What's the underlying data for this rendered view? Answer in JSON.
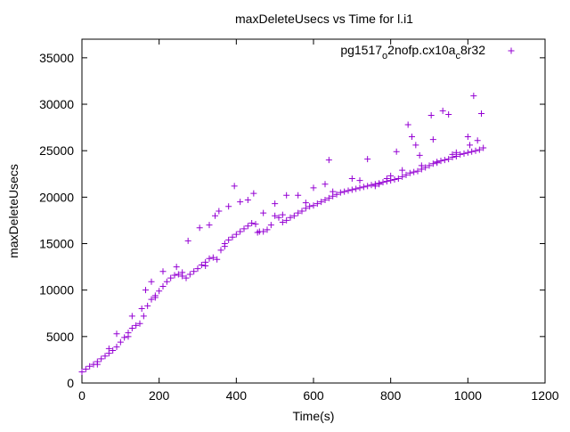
{
  "chart_data": {
    "type": "scatter",
    "title": "maxDeleteUsecs vs Time for l.i1",
    "xlabel": "Time(s)",
    "ylabel": "maxDeleteUsecs",
    "xlim": [
      0,
      1200
    ],
    "ylim": [
      0,
      37000
    ],
    "x_ticks": [
      0,
      200,
      400,
      600,
      800,
      1000,
      1200
    ],
    "y_ticks": [
      0,
      5000,
      10000,
      15000,
      20000,
      25000,
      30000,
      35000
    ],
    "grid": false,
    "legend_position": "top-right",
    "marker": "plus",
    "series": [
      {
        "legend_text": {
          "base": "pg1517",
          "sub1": "o",
          "mid": "2nofp.cx10a",
          "sub2": "c",
          "end": "8r32"
        },
        "color": "#9400d3",
        "points": [
          [
            0,
            1200
          ],
          [
            10,
            1500
          ],
          [
            20,
            1800
          ],
          [
            30,
            2000
          ],
          [
            40,
            2300
          ],
          [
            50,
            2600
          ],
          [
            60,
            2900
          ],
          [
            70,
            3200
          ],
          [
            80,
            3500
          ],
          [
            90,
            3900
          ],
          [
            100,
            4400
          ],
          [
            110,
            4900
          ],
          [
            120,
            5400
          ],
          [
            130,
            5900
          ],
          [
            140,
            6200
          ],
          [
            150,
            6400
          ],
          [
            160,
            7200
          ],
          [
            170,
            8300
          ],
          [
            180,
            9000
          ],
          [
            190,
            9400
          ],
          [
            200,
            9900
          ],
          [
            210,
            10400
          ],
          [
            220,
            10900
          ],
          [
            230,
            11300
          ],
          [
            240,
            11600
          ],
          [
            250,
            11700
          ],
          [
            260,
            11500
          ],
          [
            270,
            11300
          ],
          [
            280,
            11700
          ],
          [
            290,
            12000
          ],
          [
            300,
            12300
          ],
          [
            310,
            12700
          ],
          [
            320,
            13000
          ],
          [
            330,
            13400
          ],
          [
            340,
            13500
          ],
          [
            350,
            13300
          ],
          [
            360,
            14300
          ],
          [
            370,
            15000
          ],
          [
            380,
            15400
          ],
          [
            390,
            15700
          ],
          [
            400,
            16000
          ],
          [
            410,
            16300
          ],
          [
            420,
            16600
          ],
          [
            430,
            16900
          ],
          [
            440,
            17200
          ],
          [
            450,
            17100
          ],
          [
            460,
            16300
          ],
          [
            470,
            16300
          ],
          [
            480,
            16500
          ],
          [
            490,
            17000
          ],
          [
            500,
            18000
          ],
          [
            510,
            17800
          ],
          [
            520,
            17300
          ],
          [
            530,
            17500
          ],
          [
            540,
            17800
          ],
          [
            550,
            18000
          ],
          [
            560,
            18300
          ],
          [
            570,
            18500
          ],
          [
            580,
            18800
          ],
          [
            590,
            19000
          ],
          [
            600,
            19100
          ],
          [
            610,
            19300
          ],
          [
            620,
            19500
          ],
          [
            630,
            19700
          ],
          [
            640,
            19900
          ],
          [
            650,
            20100
          ],
          [
            660,
            20300
          ],
          [
            670,
            20500
          ],
          [
            680,
            20600
          ],
          [
            690,
            20700
          ],
          [
            700,
            20800
          ],
          [
            710,
            20900
          ],
          [
            720,
            21000
          ],
          [
            730,
            21100
          ],
          [
            740,
            21200
          ],
          [
            750,
            21300
          ],
          [
            760,
            21400
          ],
          [
            770,
            21500
          ],
          [
            780,
            21600
          ],
          [
            790,
            21700
          ],
          [
            800,
            21800
          ],
          [
            810,
            21900
          ],
          [
            820,
            22000
          ],
          [
            830,
            22200
          ],
          [
            840,
            22400
          ],
          [
            850,
            22600
          ],
          [
            860,
            22700
          ],
          [
            870,
            22800
          ],
          [
            880,
            23000
          ],
          [
            890,
            23200
          ],
          [
            900,
            23400
          ],
          [
            910,
            23600
          ],
          [
            920,
            23800
          ],
          [
            930,
            23900
          ],
          [
            940,
            24000
          ],
          [
            950,
            24100
          ],
          [
            960,
            24300
          ],
          [
            970,
            24400
          ],
          [
            980,
            24600
          ],
          [
            990,
            24700
          ],
          [
            1000,
            24800
          ],
          [
            1010,
            24900
          ],
          [
            1020,
            25000
          ],
          [
            1030,
            25100
          ],
          [
            40,
            2000
          ],
          [
            130,
            7200
          ],
          [
            155,
            8000
          ],
          [
            165,
            10000
          ],
          [
            180,
            10900
          ],
          [
            210,
            12000
          ],
          [
            245,
            12500
          ],
          [
            275,
            15300
          ],
          [
            305,
            16700
          ],
          [
            330,
            17000
          ],
          [
            345,
            18000
          ],
          [
            355,
            18500
          ],
          [
            380,
            19000
          ],
          [
            395,
            21200
          ],
          [
            410,
            19500
          ],
          [
            430,
            19700
          ],
          [
            445,
            20400
          ],
          [
            470,
            18300
          ],
          [
            500,
            19300
          ],
          [
            530,
            20200
          ],
          [
            560,
            20200
          ],
          [
            600,
            21000
          ],
          [
            630,
            21400
          ],
          [
            640,
            24000
          ],
          [
            700,
            22000
          ],
          [
            740,
            24100
          ],
          [
            770,
            21400
          ],
          [
            800,
            22300
          ],
          [
            815,
            24900
          ],
          [
            845,
            27800
          ],
          [
            855,
            26500
          ],
          [
            865,
            25600
          ],
          [
            875,
            24500
          ],
          [
            905,
            28800
          ],
          [
            910,
            26200
          ],
          [
            935,
            29300
          ],
          [
            950,
            28900
          ],
          [
            960,
            24600
          ],
          [
            1000,
            26500
          ],
          [
            1015,
            30900
          ],
          [
            1025,
            26100
          ],
          [
            1035,
            29000
          ],
          [
            1040,
            25300
          ],
          [
            70,
            3700
          ],
          [
            90,
            5300
          ],
          [
            120,
            5000
          ],
          [
            190,
            9200
          ],
          [
            260,
            11900
          ],
          [
            320,
            12600
          ],
          [
            370,
            14700
          ],
          [
            455,
            16200
          ],
          [
            520,
            18100
          ],
          [
            580,
            19400
          ],
          [
            650,
            20600
          ],
          [
            720,
            21800
          ],
          [
            760,
            21200
          ],
          [
            790,
            22000
          ],
          [
            830,
            22900
          ],
          [
            880,
            23400
          ],
          [
            920,
            23700
          ],
          [
            970,
            24800
          ],
          [
            1005,
            25600
          ]
        ]
      }
    ]
  }
}
